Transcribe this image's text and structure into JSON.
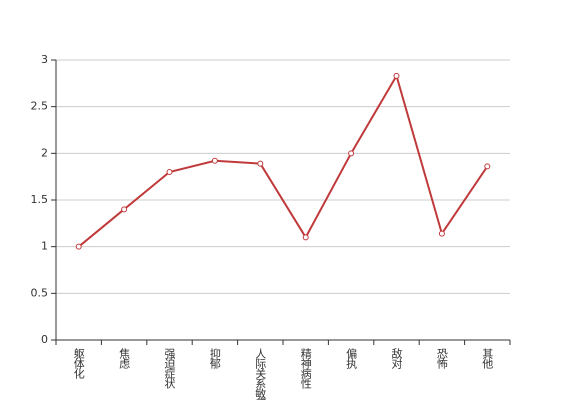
{
  "chart_data": {
    "type": "line",
    "categories": [
      "躯体化",
      "焦虑",
      "强迫症状",
      "抑郁",
      "人际关系敏感",
      "精神病性",
      "偏执",
      "敌对",
      "恐怖",
      "其他"
    ],
    "series": [
      {
        "color": "#c0393b",
        "values": [
          1.0,
          1.4,
          1.8,
          1.92,
          1.89,
          1.1,
          2.0,
          2.83,
          1.14,
          1.86
        ]
      }
    ],
    "ylim": [
      0,
      3
    ],
    "yticks": [
      0,
      0.5,
      1,
      1.5,
      2,
      2.5,
      3
    ],
    "grid": true
  }
}
